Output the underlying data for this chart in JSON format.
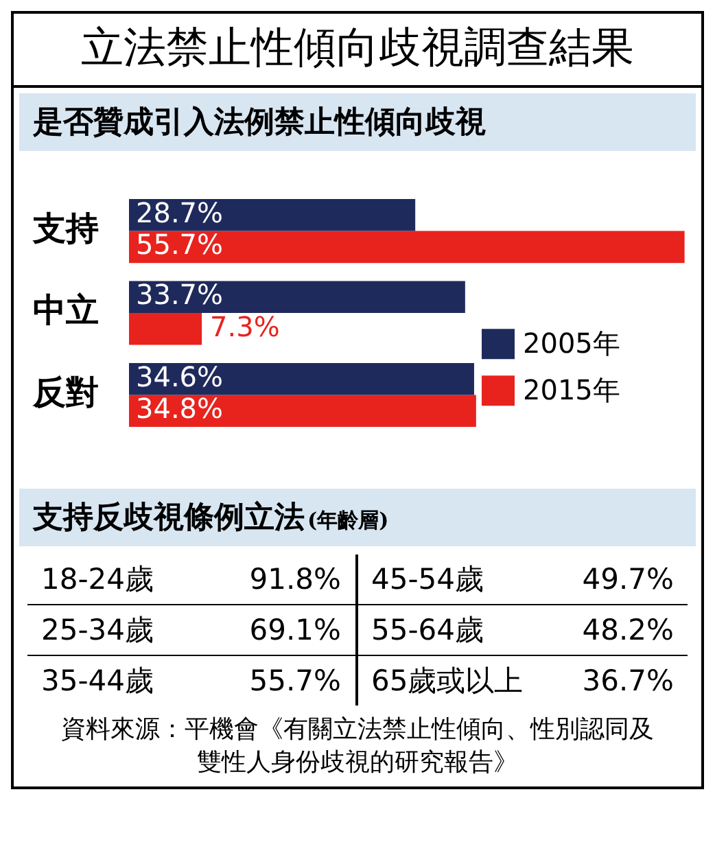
{
  "chart_data": [
    {
      "type": "bar",
      "orientation": "horizontal",
      "title": "立法禁止性傾向歧視調查結果",
      "subtitle": "是否贊成引入法例禁止性傾向歧視",
      "categories": [
        "支持",
        "中立",
        "反對"
      ],
      "xlim": [
        0,
        56
      ],
      "legend": "bottom right",
      "series": [
        {
          "name": "2005年",
          "color": "#1f2a5c",
          "values": [
            28.7,
            33.7,
            34.6
          ],
          "value_labels": [
            "28.7%",
            "33.7%",
            "34.6%"
          ]
        },
        {
          "name": "2015年",
          "color": "#e8231e",
          "values": [
            55.7,
            7.3,
            34.8
          ],
          "value_labels": [
            "55.7%",
            "7.3%",
            "34.8%"
          ]
        }
      ]
    },
    {
      "type": "other",
      "title": "支持反歧視條例立法",
      "subtitle": "(年齡層)",
      "categories": [
        "18-24歲",
        "25-34歲",
        "35-44歲",
        "45-54歲",
        "55-64歲",
        "65歲或以上"
      ],
      "value_labels": [
        "91.8%",
        "69.1%",
        "55.7%",
        "49.7%",
        "48.2%",
        "36.7%"
      ],
      "annotations": [
        "資料來源：平機會《有關立法禁止性傾向、性別認同及雙性人身份歧視的研究報告》"
      ]
    }
  ]
}
